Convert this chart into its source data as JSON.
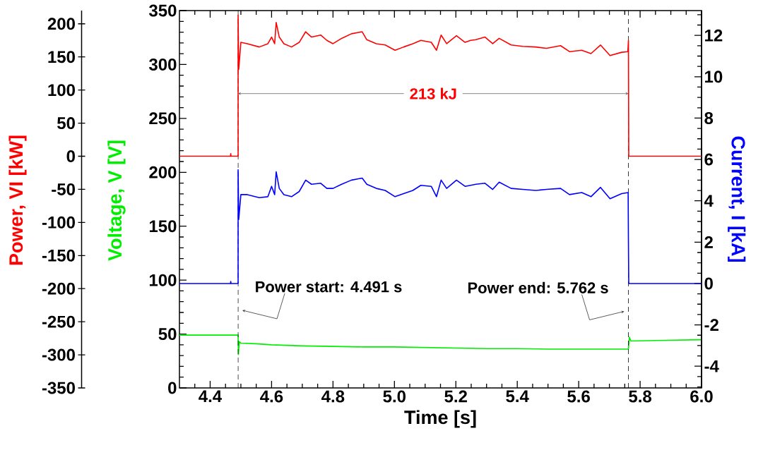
{
  "chart_data": {
    "type": "line",
    "xlabel": "Time [s]",
    "ylabel": "Voltage, V [V]",
    "y2label": "Current, I [kA]",
    "y3label": "Power, VI [kW]",
    "xlim": [
      4.3,
      6.0
    ],
    "xticks": [
      {
        "value": 4.35,
        "label": null
      },
      4.4,
      {
        "value": 4.45,
        "label": null
      },
      {
        "value": 4.5,
        "label": null
      },
      {
        "value": 4.55,
        "label": null
      },
      4.6,
      {
        "value": 4.65,
        "label": null
      },
      {
        "value": 4.7,
        "label": null
      },
      {
        "value": 4.75,
        "label": null
      },
      4.8,
      {
        "value": 4.85,
        "label": null
      },
      {
        "value": 4.9,
        "label": null
      },
      {
        "value": 4.95,
        "label": null
      },
      {
        "value": 5.0,
        "label": "5.0"
      },
      {
        "value": 5.05,
        "label": null
      },
      {
        "value": 5.1,
        "label": null
      },
      {
        "value": 5.15,
        "label": null
      },
      5.2,
      {
        "value": 5.25,
        "label": null
      },
      {
        "value": 5.3,
        "label": null
      },
      {
        "value": 5.35,
        "label": null
      },
      5.4,
      {
        "value": 5.45,
        "label": null
      },
      {
        "value": 5.5,
        "label": null
      },
      {
        "value": 5.55,
        "label": null
      },
      5.6,
      {
        "value": 5.65,
        "label": null
      },
      {
        "value": 5.7,
        "label": null
      },
      {
        "value": 5.75,
        "label": null
      },
      5.8,
      {
        "value": 5.85,
        "label": null
      },
      {
        "value": 5.9,
        "label": null
      },
      {
        "value": 5.95,
        "label": null
      },
      {
        "value": 6.0,
        "label": "6.0"
      }
    ],
    "ylim": [
      0,
      350
    ],
    "yticks": [
      0,
      {
        "value": 10,
        "label": null
      },
      {
        "value": 20,
        "label": null
      },
      {
        "value": 30,
        "label": null
      },
      {
        "value": 40,
        "label": null
      },
      50,
      {
        "value": 60,
        "label": null
      },
      {
        "value": 70,
        "label": null
      },
      {
        "value": 80,
        "label": null
      },
      {
        "value": 90,
        "label": null
      },
      100,
      {
        "value": 110,
        "label": null
      },
      {
        "value": 120,
        "label": null
      },
      {
        "value": 130,
        "label": null
      },
      {
        "value": 140,
        "label": null
      },
      150,
      {
        "value": 160,
        "label": null
      },
      {
        "value": 170,
        "label": null
      },
      {
        "value": 180,
        "label": null
      },
      {
        "value": 190,
        "label": null
      },
      200,
      {
        "value": 210,
        "label": null
      },
      {
        "value": 220,
        "label": null
      },
      {
        "value": 230,
        "label": null
      },
      {
        "value": 240,
        "label": null
      },
      250,
      {
        "value": 260,
        "label": null
      },
      {
        "value": 270,
        "label": null
      },
      {
        "value": 280,
        "label": null
      },
      {
        "value": 290,
        "label": null
      },
      300,
      {
        "value": 310,
        "label": null
      },
      {
        "value": 320,
        "label": null
      },
      {
        "value": 330,
        "label": null
      },
      {
        "value": 340,
        "label": null
      },
      350
    ],
    "y2lim": [
      -5.05,
      13.2
    ],
    "y2ticks": [
      {
        "value": -5,
        "label": null
      },
      {
        "value": -4.5,
        "label": null
      },
      -4,
      {
        "value": -3.5,
        "label": null
      },
      {
        "value": -3,
        "label": null
      },
      {
        "value": -2.5,
        "label": null
      },
      -2,
      {
        "value": -1.5,
        "label": null
      },
      {
        "value": -1,
        "label": null
      },
      {
        "value": -0.5,
        "label": null
      },
      0,
      {
        "value": 0.5,
        "label": null
      },
      {
        "value": 1,
        "label": null
      },
      {
        "value": 1.5,
        "label": null
      },
      2,
      {
        "value": 2.5,
        "label": null
      },
      {
        "value": 3,
        "label": null
      },
      {
        "value": 3.5,
        "label": null
      },
      4,
      {
        "value": 4.5,
        "label": null
      },
      {
        "value": 5,
        "label": null
      },
      {
        "value": 5.5,
        "label": null
      },
      6,
      {
        "value": 6.5,
        "label": null
      },
      {
        "value": 7,
        "label": null
      },
      {
        "value": 7.5,
        "label": null
      },
      8,
      {
        "value": 8.5,
        "label": null
      },
      {
        "value": 9,
        "label": null
      },
      {
        "value": 9.5,
        "label": null
      },
      10,
      {
        "value": 10.5,
        "label": null
      },
      {
        "value": 11,
        "label": null
      },
      {
        "value": 11.5,
        "label": null
      },
      12,
      {
        "value": 12.5,
        "label": null
      },
      {
        "value": 13,
        "label": null
      }
    ],
    "y3lim": [
      -350,
      220
    ],
    "y3ticks": [
      -350,
      -300,
      -250,
      -200,
      -150,
      -100,
      -50,
      0,
      50,
      100,
      150,
      200
    ],
    "series": [
      {
        "color": "#ff0000",
        "axis": "y3",
        "x": [
          4.3,
          4.466,
          4.467,
          4.468,
          4.491,
          4.491,
          4.493,
          4.5,
          4.521,
          4.56,
          4.588,
          4.6,
          4.61,
          4.615,
          4.625,
          4.64,
          4.665,
          4.69,
          4.711,
          4.73,
          4.76,
          4.78,
          4.8,
          4.828,
          4.86,
          4.895,
          4.91,
          4.941,
          4.97,
          5.002,
          5.03,
          5.06,
          5.086,
          5.12,
          5.137,
          5.152,
          5.17,
          5.202,
          5.23,
          5.248,
          5.265,
          5.295,
          5.32,
          5.341,
          5.38,
          5.418,
          5.46,
          5.495,
          5.541,
          5.57,
          5.61,
          5.64,
          5.671,
          5.702,
          5.74,
          5.76,
          5.762,
          5.763,
          6.0
        ],
        "values": [
          0,
          0,
          4,
          0,
          0,
          213,
          131,
          172,
          170,
          165,
          170,
          180,
          170,
          202,
          180,
          170,
          165,
          172,
          188,
          180,
          183,
          175,
          170,
          178,
          185,
          188,
          176,
          170,
          168,
          160,
          165,
          170,
          175,
          172,
          160,
          183,
          170,
          182,
          172,
          175,
          176,
          180,
          170,
          178,
          168,
          166,
          165,
          163,
          167,
          158,
          160,
          155,
          168,
          152,
          157,
          158,
          175,
          0,
          0
        ]
      },
      {
        "color": "#0000ff",
        "axis": "y2",
        "x": [
          4.3,
          4.466,
          4.467,
          4.468,
          4.491,
          4.491,
          4.493,
          4.5,
          4.521,
          4.56,
          4.588,
          4.6,
          4.61,
          4.615,
          4.625,
          4.64,
          4.665,
          4.69,
          4.711,
          4.73,
          4.76,
          4.78,
          4.8,
          4.828,
          4.86,
          4.895,
          4.91,
          4.941,
          4.97,
          5.002,
          5.03,
          5.06,
          5.086,
          5.12,
          5.137,
          5.152,
          5.17,
          5.202,
          5.23,
          5.248,
          5.265,
          5.295,
          5.32,
          5.341,
          5.38,
          5.418,
          5.46,
          5.495,
          5.541,
          5.57,
          5.61,
          5.64,
          5.671,
          5.702,
          5.74,
          5.761,
          5.762,
          5.763,
          6.0
        ],
        "values": [
          0,
          0,
          0.1,
          0,
          0,
          5.5,
          3.1,
          4.3,
          4.3,
          4.15,
          4.2,
          4.7,
          4.3,
          5.4,
          4.6,
          4.3,
          4.2,
          4.45,
          5.0,
          4.8,
          4.85,
          4.6,
          4.6,
          4.8,
          5.0,
          5.1,
          4.8,
          4.6,
          4.5,
          4.2,
          4.35,
          4.5,
          4.75,
          4.7,
          4.2,
          5.0,
          4.6,
          5.0,
          4.7,
          4.75,
          4.8,
          4.85,
          4.55,
          4.9,
          4.6,
          4.55,
          4.5,
          4.55,
          4.6,
          4.3,
          4.4,
          4.2,
          4.65,
          4.1,
          4.35,
          4.4,
          2,
          0,
          0
        ]
      },
      {
        "color": "#00ee00",
        "x": [
          4.3,
          4.49,
          4.491,
          4.492,
          4.495,
          4.5,
          4.55,
          4.6,
          4.65,
          4.7,
          4.8,
          4.9,
          5.0,
          5.1,
          5.2,
          5.3,
          5.4,
          5.5,
          5.6,
          5.7,
          5.762,
          5.765,
          5.77,
          5.85,
          6.0
        ],
        "values": [
          49,
          49,
          49,
          31,
          43,
          41.5,
          41,
          40,
          39.5,
          39,
          38.5,
          38,
          38,
          37.5,
          37,
          36.5,
          36.5,
          36,
          36,
          36,
          36,
          47,
          43.5,
          44,
          44.7
        ]
      }
    ],
    "ref_lines": [
      {
        "axis": "x",
        "value": 4.491,
        "color": "#000000",
        "line_style": "dashed"
      },
      {
        "axis": "x",
        "value": 5.762,
        "color": "#000000",
        "line_style": "dashed"
      }
    ],
    "annotations": [
      "213 kJ",
      {
        "text": "Power start: 4.491 s",
        "x": 4.491,
        "y": 72
      },
      {
        "text": "Power end: 5.762 s",
        "x": 5.762,
        "y": 71
      }
    ]
  }
}
